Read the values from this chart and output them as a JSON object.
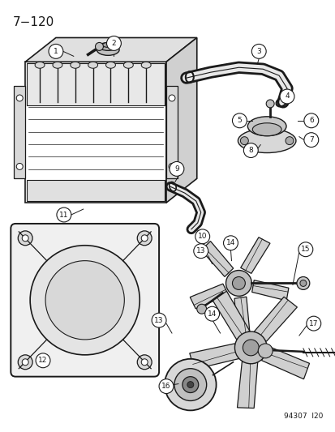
{
  "bg_color": "#ffffff",
  "line_color": "#1a1a1a",
  "page_num": "7−120",
  "footer_text": "94307  l20",
  "font_size_title": 11,
  "font_size_label": 6.5
}
